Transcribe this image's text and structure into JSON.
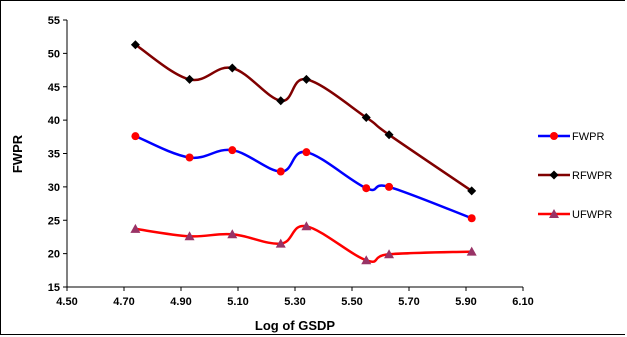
{
  "chart_data": {
    "type": "line",
    "xlabel": "Log of GSDP",
    "ylabel": "FWPR",
    "xlim": [
      4.5,
      6.1
    ],
    "ylim": [
      15,
      55
    ],
    "xticks": [
      "4.50",
      "4.70",
      "4.90",
      "5.10",
      "5.30",
      "5.50",
      "5.70",
      "5.90",
      "6.10"
    ],
    "yticks": [
      "15",
      "20",
      "25",
      "30",
      "35",
      "40",
      "45",
      "50",
      "55"
    ],
    "grid": false,
    "legend_position": "right",
    "series": [
      {
        "name": "FWPR",
        "color": "#0000ff",
        "marker": "circle",
        "marker_color": "#ff0000",
        "x": [
          4.74,
          4.93,
          5.08,
          5.25,
          5.34,
          5.55,
          5.63,
          5.92
        ],
        "y": [
          37.6,
          34.4,
          35.5,
          32.3,
          35.2,
          29.8,
          30.0,
          25.3
        ]
      },
      {
        "name": "RFWPR",
        "color": "#800000",
        "marker": "diamond",
        "marker_color": "#000000",
        "x": [
          4.74,
          4.93,
          5.08,
          5.25,
          5.34,
          5.55,
          5.63,
          5.92
        ],
        "y": [
          51.3,
          46.1,
          47.8,
          42.9,
          46.1,
          40.4,
          37.8,
          29.4
        ]
      },
      {
        "name": "UFWPR",
        "color": "#ff0000",
        "marker": "triangle",
        "marker_color": "#993366",
        "x": [
          4.74,
          4.93,
          5.08,
          5.25,
          5.34,
          5.55,
          5.63,
          5.92
        ],
        "y": [
          23.7,
          22.6,
          22.9,
          21.5,
          24.1,
          19.0,
          19.9,
          20.3
        ]
      }
    ]
  }
}
